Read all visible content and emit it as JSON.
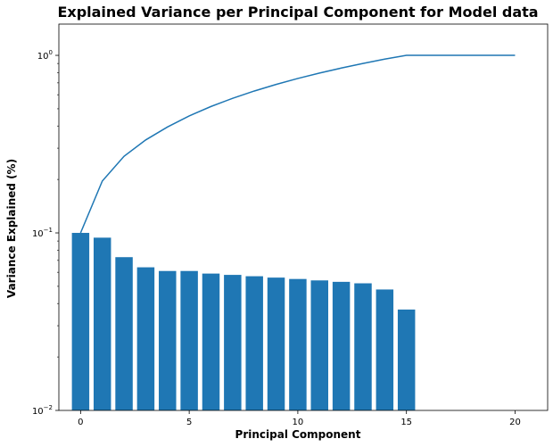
{
  "chart_data": {
    "type": "bar",
    "title": "Explained Variance per Principal Component for Model data",
    "xlabel": "Principal Component",
    "ylabel": "Variance Explained (%)",
    "yscale": "log",
    "ylim": [
      0.01,
      1.5
    ],
    "xlim": [
      -1,
      21.5
    ],
    "x_ticks": [
      0,
      5,
      10,
      15,
      20
    ],
    "y_ticks": [
      {
        "value": 0.01,
        "base": "10",
        "exp": "−2"
      },
      {
        "value": 0.1,
        "base": "10",
        "exp": "−1"
      },
      {
        "value": 1,
        "base": "10",
        "exp": "0"
      }
    ],
    "bar_color": "#1f77b4",
    "line_color": "#1f77b4",
    "series": [
      {
        "type": "bar",
        "x": [
          0,
          1,
          2,
          3,
          4,
          5,
          6,
          7,
          8,
          9,
          10,
          11,
          12,
          13,
          14,
          15
        ],
        "values": [
          0.1,
          0.094,
          0.073,
          0.064,
          0.061,
          0.061,
          0.059,
          0.058,
          0.057,
          0.056,
          0.055,
          0.054,
          0.053,
          0.052,
          0.048,
          0.037
        ]
      },
      {
        "type": "line",
        "x": [
          0,
          1,
          2,
          3,
          4,
          5,
          6,
          7,
          8,
          9,
          10,
          11,
          12,
          13,
          14,
          15,
          16,
          17,
          18,
          19,
          20
        ],
        "values": [
          0.1,
          0.196,
          0.27,
          0.334,
          0.395,
          0.456,
          0.515,
          0.573,
          0.63,
          0.686,
          0.741,
          0.795,
          0.848,
          0.9,
          0.952,
          1.0,
          1.0,
          1.0,
          1.0,
          1.0,
          1.0
        ]
      }
    ]
  }
}
